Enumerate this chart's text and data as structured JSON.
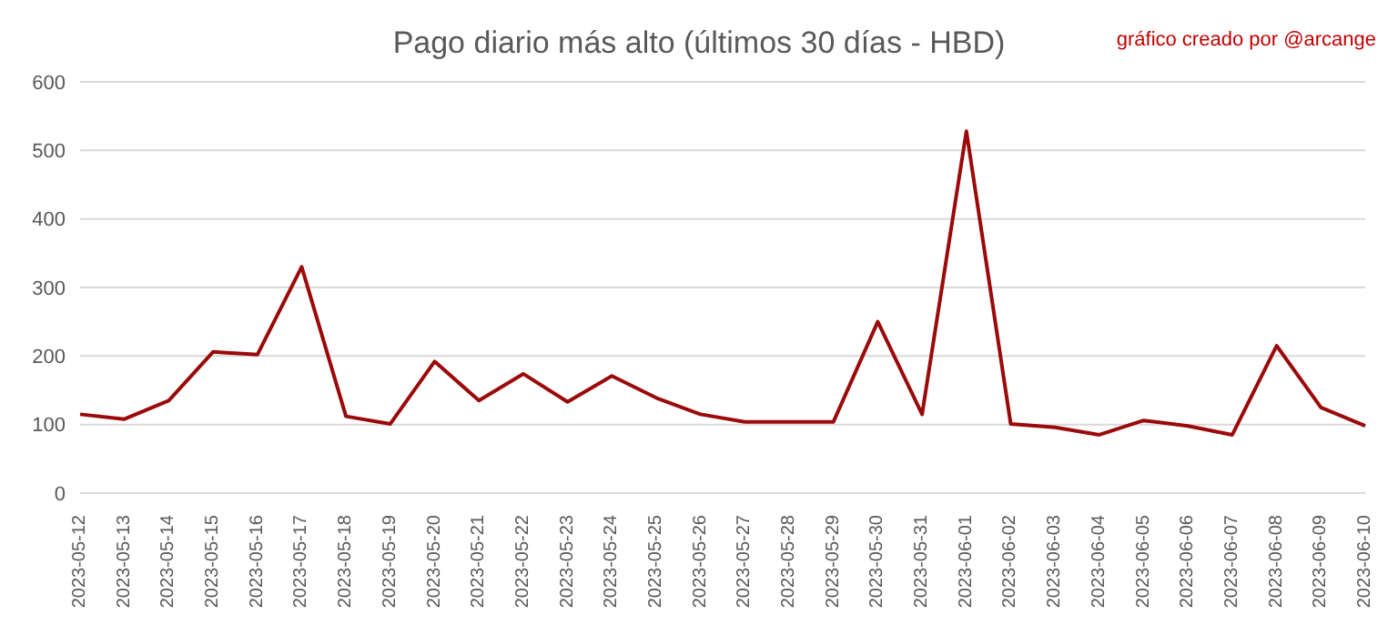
{
  "chart_data": {
    "type": "line",
    "title": "Pago diario más alto (últimos 30 días - HBD)",
    "annotations": [
      "gráfico creado por @arcange"
    ],
    "categories": [
      "2023-05-12",
      "2023-05-13",
      "2023-05-14",
      "2023-05-15",
      "2023-05-16",
      "2023-05-17",
      "2023-05-18",
      "2023-05-19",
      "2023-05-20",
      "2023-05-21",
      "2023-05-22",
      "2023-05-23",
      "2023-05-24",
      "2023-05-25",
      "2023-05-26",
      "2023-05-27",
      "2023-05-28",
      "2023-05-29",
      "2023-05-30",
      "2023-05-31",
      "2023-06-01",
      "2023-06-02",
      "2023-06-03",
      "2023-06-04",
      "2023-06-05",
      "2023-06-06",
      "2023-06-07",
      "2023-06-08",
      "2023-06-09",
      "2023-06-10"
    ],
    "series": [
      {
        "color": "#9b0a0a",
        "values": [
          115,
          108,
          135,
          206,
          202,
          330,
          112,
          101,
          192,
          135,
          174,
          133,
          171,
          139,
          115,
          104,
          104,
          104,
          250,
          115,
          528,
          101,
          96,
          85,
          106,
          98,
          85,
          215,
          125,
          98
        ]
      }
    ],
    "ylim": [
      0,
      600
    ],
    "yticks": [
      0,
      100,
      200,
      300,
      400,
      500,
      600
    ],
    "grid": "y",
    "marker": "none",
    "line_style": "solid",
    "legend": false
  }
}
